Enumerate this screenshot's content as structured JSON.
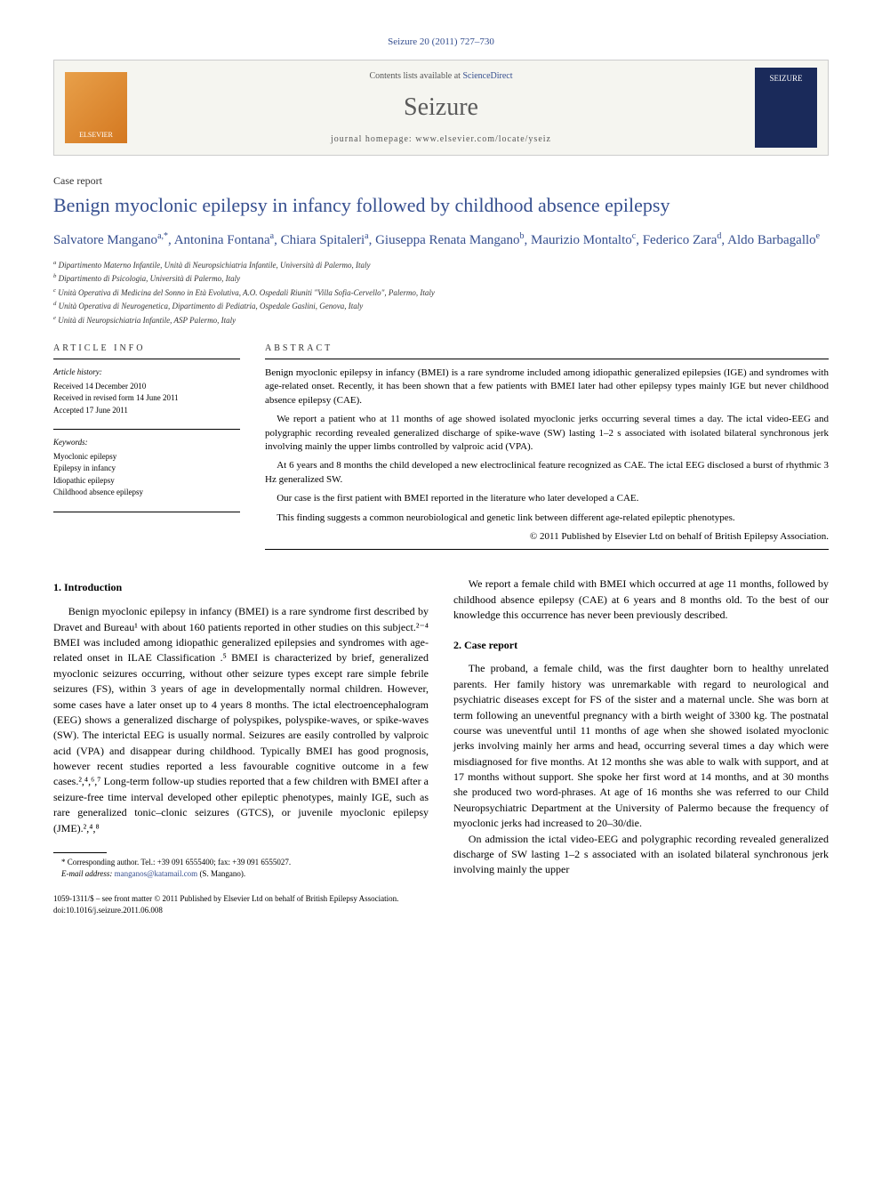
{
  "citation": "Seizure 20 (2011) 727–730",
  "banner": {
    "contents_prefix": "Contents lists available at ",
    "contents_link": "ScienceDirect",
    "journal_name": "Seizure",
    "homepage_prefix": "journal homepage: ",
    "homepage_url": "www.elsevier.com/locate/yseiz",
    "publisher_logo": "ELSEVIER",
    "cover_label": "SEIZURE"
  },
  "article_type": "Case report",
  "title": "Benign myoclonic epilepsy in infancy followed by childhood absence epilepsy",
  "authors": [
    {
      "name": "Salvatore Mangano",
      "marks": "a,*"
    },
    {
      "name": "Antonina Fontana",
      "marks": "a"
    },
    {
      "name": "Chiara Spitaleri",
      "marks": "a"
    },
    {
      "name": "Giuseppa Renata Mangano",
      "marks": "b"
    },
    {
      "name": "Maurizio Montalto",
      "marks": "c"
    },
    {
      "name": "Federico Zara",
      "marks": "d"
    },
    {
      "name": "Aldo Barbagallo",
      "marks": "e"
    }
  ],
  "affiliations": [
    {
      "mark": "a",
      "text": "Dipartimento Materno Infantile, Unità di Neuropsichiatria Infantile, Università di Palermo, Italy"
    },
    {
      "mark": "b",
      "text": "Dipartimento di Psicologia, Università di Palermo, Italy"
    },
    {
      "mark": "c",
      "text": "Unità Operativa di Medicina del Sonno in Età Evolutiva, A.O. Ospedali Riuniti \"Villa Sofia-Cervello\", Palermo, Italy"
    },
    {
      "mark": "d",
      "text": "Unità Operativa di Neurogenetica, Dipartimento di Pediatria, Ospedale Gaslini, Genova, Italy"
    },
    {
      "mark": "e",
      "text": "Unità di Neuropsichiatria Infantile, ASP Palermo, Italy"
    }
  ],
  "article_info": {
    "heading": "ARTICLE INFO",
    "history_label": "Article history:",
    "history": [
      "Received 14 December 2010",
      "Received in revised form 14 June 2011",
      "Accepted 17 June 2011"
    ],
    "keywords_label": "Keywords:",
    "keywords": [
      "Myoclonic epilepsy",
      "Epilepsy in infancy",
      "Idiopathic epilepsy",
      "Childhood absence epilepsy"
    ]
  },
  "abstract": {
    "heading": "ABSTRACT",
    "paragraphs": [
      "Benign myoclonic epilepsy in infancy (BMEI) is a rare syndrome included among idiopathic generalized epilepsies (IGE) and syndromes with age-related onset. Recently, it has been shown that a few patients with BMEI later had other epilepsy types mainly IGE but never childhood absence epilepsy (CAE).",
      "We report a patient who at 11 months of age showed isolated myoclonic jerks occurring several times a day. The ictal video-EEG and polygraphic recording revealed generalized discharge of spike-wave (SW) lasting 1–2 s associated with isolated bilateral synchronous jerk involving mainly the upper limbs controlled by valproic acid (VPA).",
      "At 6 years and 8 months the child developed a new electroclinical feature recognized as CAE. The ictal EEG disclosed a burst of rhythmic 3 Hz generalized SW.",
      "Our case is the first patient with BMEI reported in the literature who later developed a CAE.",
      "This finding suggests a common neurobiological and genetic link between different age-related epileptic phenotypes."
    ],
    "copyright": "© 2011 Published by Elsevier Ltd on behalf of British Epilepsy Association."
  },
  "sections": {
    "intro_heading": "1. Introduction",
    "intro_p1": "Benign myoclonic epilepsy in infancy (BMEI) is a rare syndrome first described by Dravet and Bureau¹ with about 160 patients reported in other studies on this subject.²⁻⁴ BMEI was included among idiopathic generalized epilepsies and syndromes with age-related onset in ILAE Classification .⁵ BMEI is characterized by brief, generalized myoclonic seizures occurring, without other seizure types except rare simple febrile seizures (FS), within 3 years of age in developmentally normal children. However, some cases have a later onset up to 4 years 8 months. The ictal electroencephalogram (EEG) shows a generalized discharge of polyspikes, polyspike-waves, or spike-waves (SW). The interictal EEG is usually normal. Seizures are easily controlled by valproic acid (VPA) and disappear during childhood. Typically BMEI has good prognosis, however recent studies reported a less favourable cognitive outcome in a few cases.²,⁴,⁶,⁷ Long-term follow-up studies reported that a few children with BMEI after a seizure-free time interval developed other epileptic phenotypes, mainly IGE, such as rare generalized tonic–clonic seizures (GTCS), or juvenile myoclonic epilepsy (JME).²,⁴,⁸",
    "intro_p2": "We report a female child with BMEI which occurred at age 11 months, followed by childhood absence epilepsy (CAE) at 6 years and 8 months old. To the best of our knowledge this occurrence has never been previously described.",
    "case_heading": "2. Case report",
    "case_p1": "The proband, a female child, was the first daughter born to healthy unrelated parents. Her family history was unremarkable with regard to neurological and psychiatric diseases except for FS of the sister and a maternal uncle. She was born at term following an uneventful pregnancy with a birth weight of 3300 kg. The postnatal course was uneventful until 11 months of age when she showed isolated myoclonic jerks involving mainly her arms and head, occurring several times a day which were misdiagnosed for five months. At 12 months she was able to walk with support, and at 17 months without support. She spoke her first word at 14 months, and at 30 months she produced two word-phrases. At age of 16 months she was referred to our Child Neuropsychiatric Department at the University of Palermo because the frequency of myoclonic jerks had increased to 20–30/die.",
    "case_p2": "On admission the ictal video-EEG and polygraphic recording revealed generalized discharge of SW lasting 1–2 s associated with an isolated bilateral synchronous jerk involving mainly the upper"
  },
  "footnotes": {
    "corr": "* Corresponding author. Tel.: +39 091 6555400; fax: +39 091 6555027.",
    "email_label": "E-mail address: ",
    "email": "manganos@katamail.com",
    "email_author": " (S. Mangano)."
  },
  "bottom": {
    "issn": "1059-1311/$ – see front matter © 2011 Published by Elsevier Ltd on behalf of British Epilepsy Association.",
    "doi": "doi:10.1016/j.seizure.2011.06.008"
  }
}
